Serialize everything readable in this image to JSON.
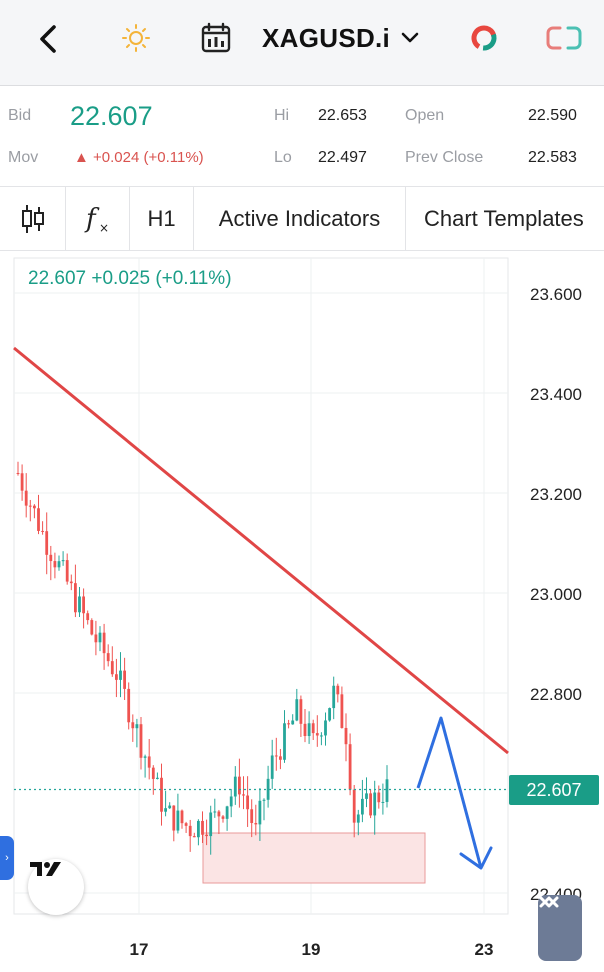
{
  "header": {
    "symbol": "XAGUSD.i",
    "icons": [
      "back-chevron-icon",
      "sun-icon",
      "calendar-icon",
      "chevron-down-icon",
      "donut-chart-icon",
      "link-icon"
    ],
    "colors": {
      "donut_red": "#e8473f",
      "donut_green": "#1a9d87",
      "link": "#e87d7a"
    }
  },
  "quote": {
    "bid_label": "Bid",
    "bid_value": "22.607",
    "mov_label": "Mov",
    "mov_value": "▲ +0.024 (+0.11%)",
    "hi_label": "Hi",
    "hi_value": "22.653",
    "lo_label": "Lo",
    "lo_value": "22.497",
    "open_label": "Open",
    "open_value": "22.590",
    "prev_close_label": "Prev Close",
    "prev_close_value": "22.583"
  },
  "toolbar": {
    "interval": "H1",
    "active_indicators": "Active Indicators",
    "chart_templates": "Chart Templates",
    "icons": [
      "candlestick-icon",
      "function-icon"
    ]
  },
  "chart": {
    "legend": "22.607  +0.025 (+0.11%)",
    "current_price": "22.607",
    "y_ticks": [
      "23.600",
      "23.400",
      "23.200",
      "23.000",
      "22.800",
      "22.400"
    ],
    "x_ticks": [
      "17",
      "19",
      "23"
    ],
    "colors": {
      "up": "#26a69a",
      "down": "#ef5350",
      "trendline": "#e04646",
      "arrow": "#2f6fe0",
      "zone": "#fbe4e4"
    }
  },
  "chart_data": {
    "type": "candlestick",
    "symbol": "XAGUSD.i",
    "timeframe": "H1",
    "y_ticks": [
      23.6,
      23.4,
      23.2,
      23.0,
      22.8,
      22.4
    ],
    "ylim": [
      22.36,
      23.66
    ],
    "x_ticks": [
      "17",
      "19",
      "23"
    ],
    "current_price": 22.607,
    "close_path": [
      {
        "x": 0,
        "y": 23.24
      },
      {
        "x": 6,
        "y": 23.12
      },
      {
        "x": 12,
        "y": 23.02
      },
      {
        "x": 18,
        "y": 22.92
      },
      {
        "x": 24,
        "y": 22.84
      },
      {
        "x": 30,
        "y": 22.7
      },
      {
        "x": 36,
        "y": 22.56
      },
      {
        "x": 42,
        "y": 22.53
      },
      {
        "x": 48,
        "y": 22.55
      },
      {
        "x": 54,
        "y": 22.62
      },
      {
        "x": 58,
        "y": 22.52
      },
      {
        "x": 62,
        "y": 22.66
      },
      {
        "x": 68,
        "y": 22.76
      },
      {
        "x": 72,
        "y": 22.7
      },
      {
        "x": 77,
        "y": 22.8
      },
      {
        "x": 80,
        "y": 22.72
      },
      {
        "x": 82,
        "y": 22.55
      },
      {
        "x": 86,
        "y": 22.58
      },
      {
        "x": 90,
        "y": 22.61
      }
    ],
    "trendline": {
      "start_y": 23.49,
      "end_y": 22.68
    },
    "support_zone": {
      "y_low": 22.42,
      "y_high": 22.52
    },
    "projection": [
      22.61,
      22.75,
      22.45
    ]
  }
}
